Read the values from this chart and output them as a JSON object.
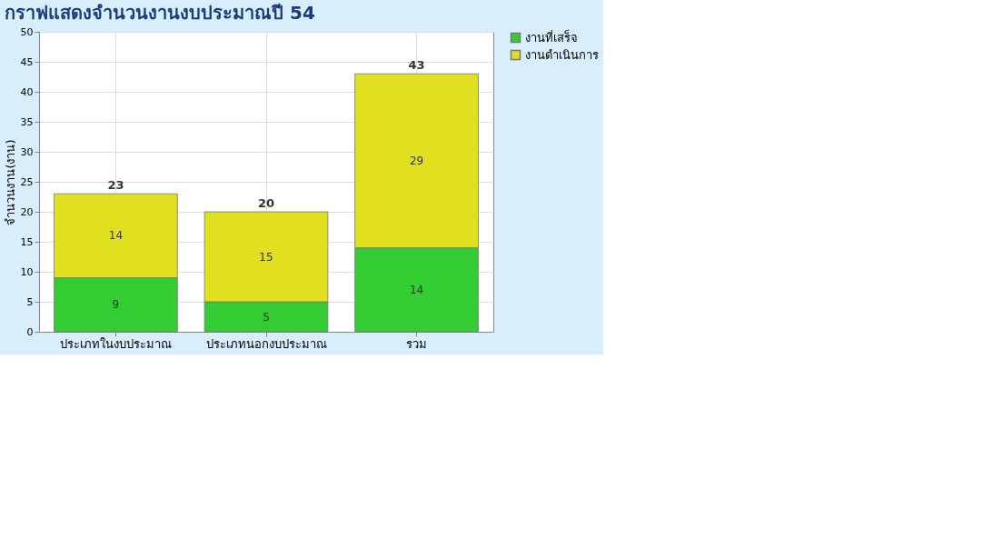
{
  "chart_data": {
    "type": "bar",
    "title": "กราฟแสดงจำนวนงานงบประมาณปี 54",
    "ylabel": "จำนวนงาน(งาน)",
    "categories": [
      "ประเภทในงบประมาณ",
      "ประเภทนอกงบประมาณ",
      "รวม"
    ],
    "series": [
      {
        "name": "งานที่เสร็จ",
        "color": "#33cc33",
        "values": [
          9,
          5,
          14
        ]
      },
      {
        "name": "งานดำเนินการ",
        "color": "#e0e020",
        "values": [
          14,
          15,
          29
        ]
      }
    ],
    "stacked": true,
    "ylim": [
      0,
      50
    ],
    "yticks": [
      0,
      5,
      10,
      15,
      20,
      25,
      30,
      35,
      40,
      45,
      50
    ],
    "grid": true,
    "legend": "right",
    "data_labels": true,
    "totals": [
      "23",
      "20",
      "43"
    ]
  }
}
